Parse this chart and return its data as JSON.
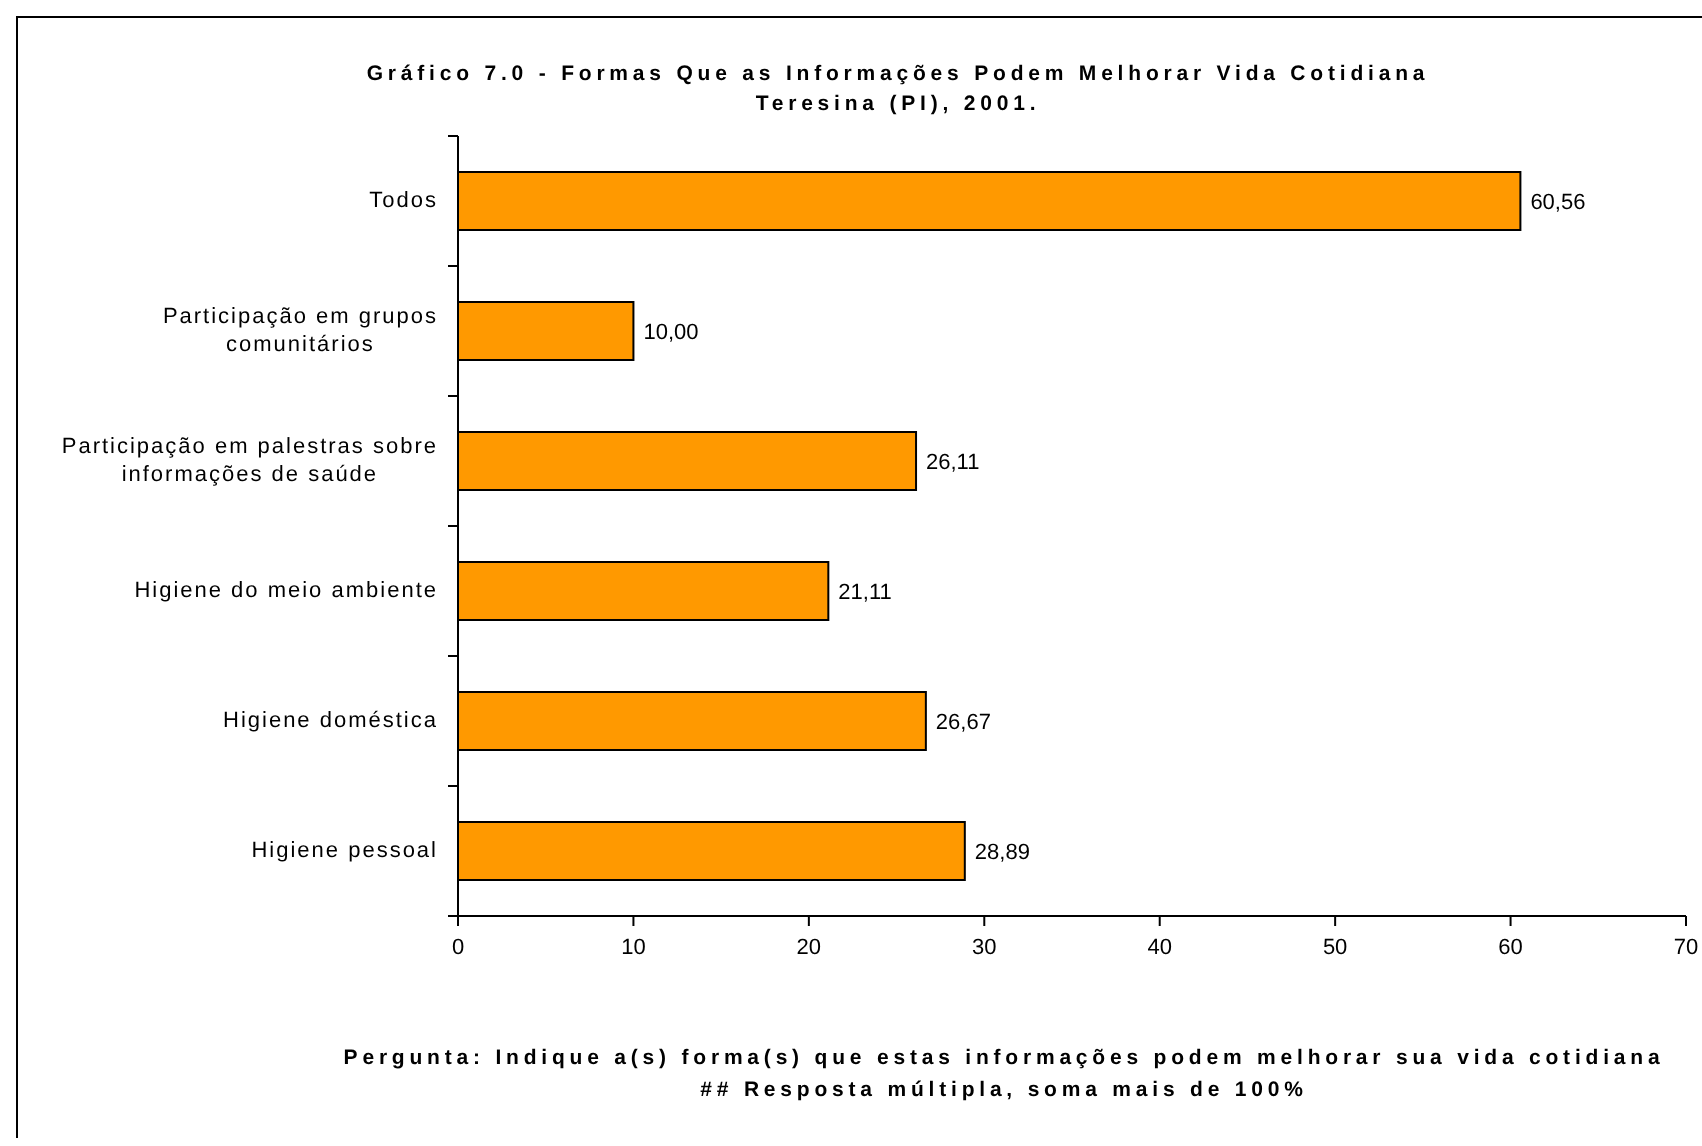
{
  "chart_data": {
    "type": "bar",
    "orientation": "horizontal",
    "title": "Gráfico 7.0 - Formas Que as Informações Podem Melhorar Vida Cotidiana",
    "subtitle": "Teresina (PI), 2001.",
    "categories": [
      "Todos",
      "Participação em grupos comunitários",
      "Participação em palestras sobre informações de saúde",
      "Higiene do meio ambiente",
      "Higiene doméstica",
      "Higiene pessoal"
    ],
    "values": [
      60.56,
      10.0,
      26.11,
      21.11,
      26.67,
      28.89
    ],
    "color": "#ff9900",
    "value_labels": [
      "60,56",
      "10,00",
      "26,11",
      "21,11",
      "26,67",
      "28,89"
    ],
    "xlim": [
      0,
      70
    ],
    "xticks": [
      0,
      10,
      20,
      30,
      40,
      50,
      60,
      70
    ],
    "annotations": [
      "Pergunta: Indique a(s) forma(s) que estas informações podem melhorar sua vida cotidiana",
      "## Resposta múltipla, soma mais de 100%"
    ]
  }
}
